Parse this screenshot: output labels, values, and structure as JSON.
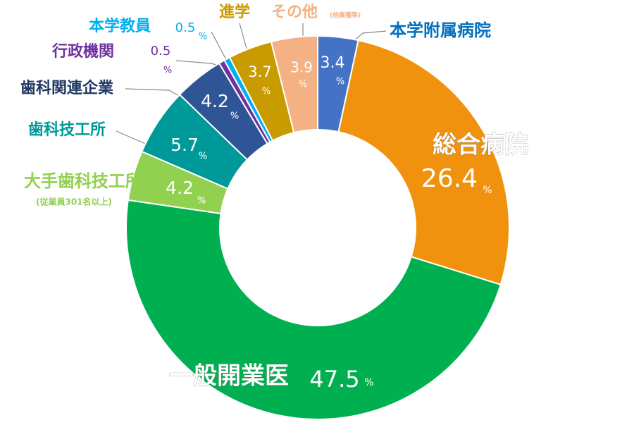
{
  "chart_data": {
    "type": "donut",
    "unit": "%",
    "slices": [
      {
        "label": "本学附属病院",
        "value": 3.4,
        "color": "#4472c4"
      },
      {
        "label": "総合病院",
        "value": 26.4,
        "color": "#f0920e"
      },
      {
        "label": "一般開業医",
        "value": 47.5,
        "color": "#00b050"
      },
      {
        "label": "大手歯科技工所",
        "note": "(従業員301名以上)",
        "value": 4.2,
        "color": "#92d050"
      },
      {
        "label": "歯科技工所",
        "value": 5.7,
        "color": "#009999"
      },
      {
        "label": "歯科関連企業",
        "value": 4.2,
        "color": "#2f5597"
      },
      {
        "label": "行政機関",
        "value": 0.5,
        "color": "#7030a0"
      },
      {
        "label": "本学教員",
        "value": 0.5,
        "color": "#00b0f0"
      },
      {
        "label": "進学",
        "value": 3.7,
        "color": "#c89b00"
      },
      {
        "label": "その他",
        "note": "(他業種等)",
        "value": 3.9,
        "color": "#f4b183"
      }
    ]
  }
}
